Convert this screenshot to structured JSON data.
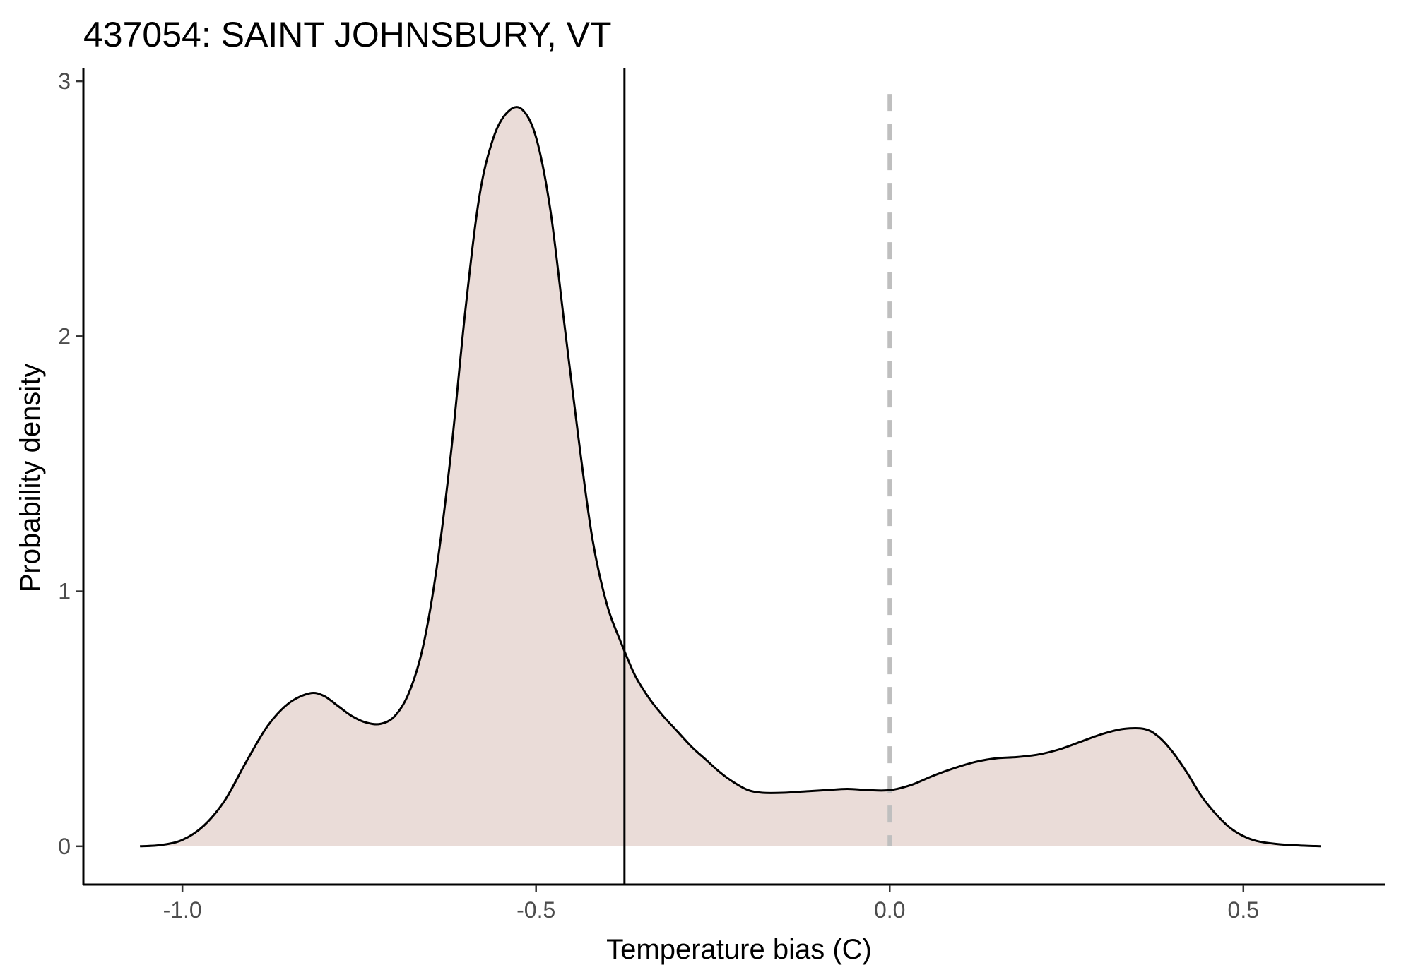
{
  "chart_data": {
    "type": "area",
    "title": "437054: SAINT JOHNSBURY, VT",
    "xlabel": "Temperature bias (C)",
    "ylabel": "Probability density",
    "xlim": [
      -1.14,
      0.7
    ],
    "ylim": [
      -0.15,
      3.05
    ],
    "x_ticks": [
      -1.0,
      -0.5,
      0.0,
      0.5
    ],
    "x_tick_labels": [
      "-1.0",
      "-0.5",
      "0.0",
      "0.5"
    ],
    "y_ticks": [
      0,
      1,
      2,
      3
    ],
    "y_tick_labels": [
      "0",
      "1",
      "2",
      "3"
    ],
    "grid": false,
    "legend": "none",
    "fill_color": "#eadcd8",
    "line_color": "#000000",
    "series": [
      {
        "x": [
          -1.06,
          -1.03,
          -1.0,
          -0.97,
          -0.94,
          -0.91,
          -0.88,
          -0.85,
          -0.82,
          -0.8,
          -0.78,
          -0.76,
          -0.74,
          -0.72,
          -0.7,
          -0.68,
          -0.66,
          -0.64,
          -0.62,
          -0.6,
          -0.58,
          -0.56,
          -0.54,
          -0.52,
          -0.5,
          -0.48,
          -0.46,
          -0.44,
          -0.42,
          -0.4,
          -0.38,
          -0.36,
          -0.34,
          -0.32,
          -0.3,
          -0.28,
          -0.26,
          -0.24,
          -0.22,
          -0.2,
          -0.18,
          -0.15,
          -0.12,
          -0.09,
          -0.06,
          -0.03,
          0.0,
          0.03,
          0.06,
          0.09,
          0.12,
          0.15,
          0.18,
          0.21,
          0.24,
          0.27,
          0.3,
          0.33,
          0.36,
          0.38,
          0.4,
          0.42,
          0.44,
          0.46,
          0.48,
          0.5,
          0.52,
          0.55,
          0.58,
          0.61
        ],
        "y": [
          0.0,
          0.005,
          0.025,
          0.08,
          0.18,
          0.33,
          0.47,
          0.56,
          0.6,
          0.59,
          0.55,
          0.51,
          0.485,
          0.48,
          0.51,
          0.6,
          0.78,
          1.1,
          1.55,
          2.1,
          2.55,
          2.78,
          2.88,
          2.89,
          2.78,
          2.5,
          2.05,
          1.6,
          1.2,
          0.95,
          0.8,
          0.67,
          0.58,
          0.51,
          0.45,
          0.39,
          0.34,
          0.29,
          0.25,
          0.22,
          0.21,
          0.21,
          0.215,
          0.22,
          0.225,
          0.22,
          0.22,
          0.24,
          0.275,
          0.305,
          0.33,
          0.345,
          0.35,
          0.36,
          0.38,
          0.41,
          0.44,
          0.46,
          0.46,
          0.43,
          0.37,
          0.29,
          0.2,
          0.13,
          0.075,
          0.04,
          0.02,
          0.008,
          0.003,
          0.0
        ]
      }
    ],
    "reference_lines": [
      {
        "orientation": "vertical",
        "x": -0.375,
        "style": "solid",
        "color": "#000000"
      },
      {
        "orientation": "vertical",
        "x": 0.0,
        "style": "dashed",
        "color": "#bfbfbf",
        "y_range": [
          0,
          2.95
        ]
      }
    ]
  }
}
